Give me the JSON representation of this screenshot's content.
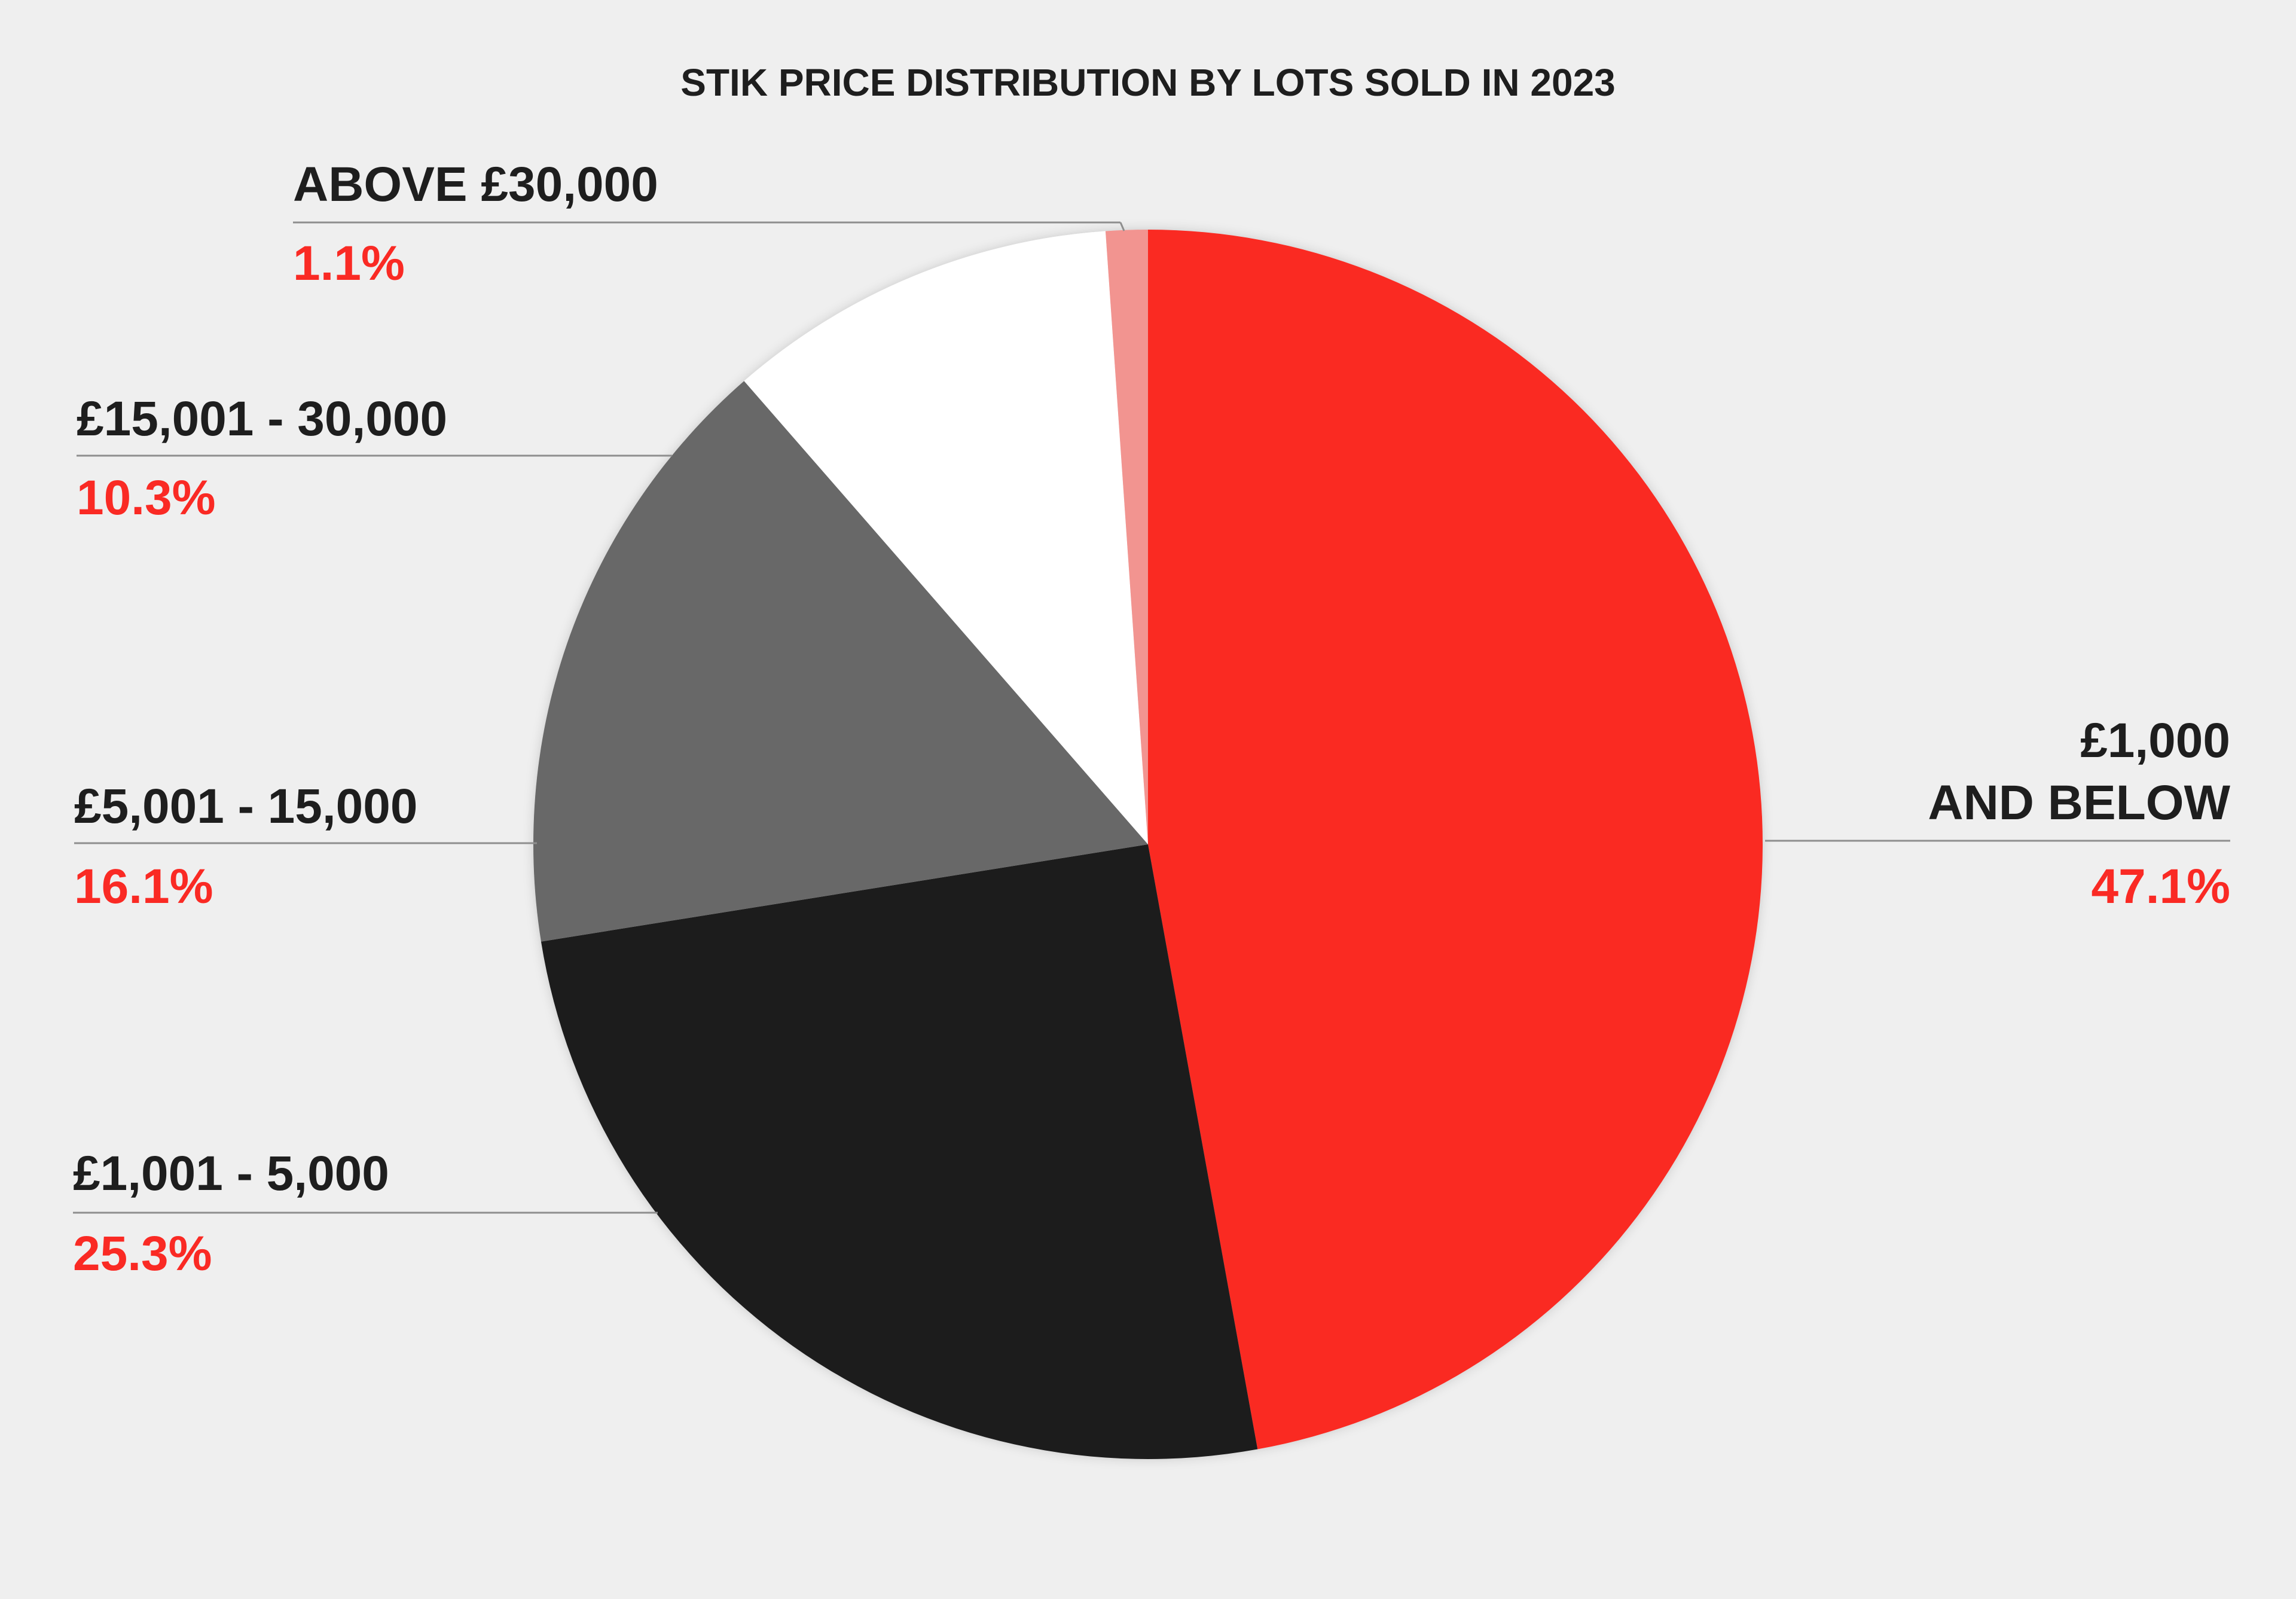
{
  "chart_data": {
    "type": "pie",
    "title": "STIK PRICE DISTRIBUTION BY LOTS SOLD IN 2023",
    "slices": [
      {
        "label": "£1,000 AND BELOW",
        "label_lines": [
          "£1,000",
          "AND BELOW"
        ],
        "value": 47.1,
        "value_label": "47.1%",
        "color": "#fa2a24"
      },
      {
        "label": "£1,001 - 5,000",
        "label_lines": [
          "£1,001 - 5,000"
        ],
        "value": 25.3,
        "value_label": "25.3%",
        "color": "#1f1f1f"
      },
      {
        "label": "£5,001 - 15,000",
        "label_lines": [
          "£5,001 - 15,000"
        ],
        "value": 16.1,
        "value_label": "16.1%",
        "color": "#686868"
      },
      {
        "label": "£15,001 - 30,000",
        "label_lines": [
          "£15,001 - 30,000"
        ],
        "value": 10.3,
        "value_label": "10.3%",
        "color": "#ffffff"
      },
      {
        "label": "ABOVE £30,000",
        "label_lines": [
          "ABOVE £30,000"
        ],
        "value": 1.1,
        "value_label": "1.1%",
        "color": "#f29490"
      }
    ],
    "start_angle": "12 o'clock",
    "direction": "clockwise",
    "legend": "none"
  }
}
